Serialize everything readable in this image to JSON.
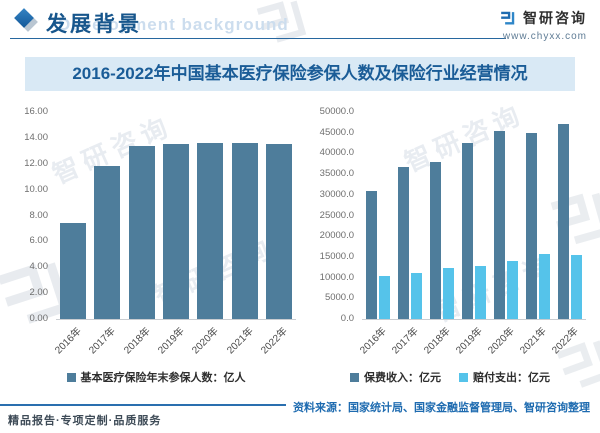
{
  "watermark": {
    "text": "智研咨询"
  },
  "header": {
    "section_title": "发展背景",
    "section_subtitle_en": "Development background",
    "brand_name": "智研咨询",
    "brand_url": "www.chyxx.com"
  },
  "main_title": "2016-2022年中国基本医疗保险参保人数及保险行业经营情况",
  "chart_data": [
    {
      "type": "bar",
      "categories": [
        "2016年",
        "2017年",
        "2018年",
        "2019年",
        "2020年",
        "2021年",
        "2022年"
      ],
      "series": [
        {
          "name": "基本医疗保险年末参保人数：亿人",
          "color": "#4e7d9b",
          "values": [
            7.4,
            11.8,
            13.4,
            13.5,
            13.6,
            13.6,
            13.5
          ]
        }
      ],
      "ylim": [
        0,
        16
      ],
      "yticks": [
        "16.00",
        "14.00",
        "12.00",
        "10.00",
        "8.00",
        "6.00",
        "4.00",
        "2.00",
        "0.00"
      ],
      "grid": false,
      "legend_position": "bottom"
    },
    {
      "type": "bar",
      "categories": [
        "2016年",
        "2017年",
        "2018年",
        "2019年",
        "2020年",
        "2021年",
        "2022年"
      ],
      "series": [
        {
          "name": "保费收入：亿元",
          "color": "#4e7d9b",
          "values": [
            31000,
            36600,
            38000,
            42600,
            45300,
            44900,
            47000
          ]
        },
        {
          "name": "赔付支出：亿元",
          "color": "#55c3ea",
          "values": [
            10500,
            11200,
            12300,
            12900,
            13900,
            15600,
            15500
          ]
        }
      ],
      "ylim": [
        0,
        50000
      ],
      "yticks": [
        "50000.0",
        "45000.0",
        "40000.0",
        "35000.0",
        "30000.0",
        "25000.0",
        "20000.0",
        "15000.0",
        "10000.0",
        "5000.0",
        "0.0"
      ],
      "grid": false,
      "legend_position": "bottom"
    }
  ],
  "footer": {
    "slogan": "精品报告·专项定制·品质服务",
    "source": "资料来源：国家统计局、国家金融监督管理局、智研咨询整理"
  },
  "colors": {
    "accent_blue": "#1e6bb0",
    "header_title": "#17568c",
    "main_title_text": "#1a5c97",
    "main_title_bg": "#d9e9f5",
    "bar_dark": "#4e7d9b",
    "bar_light": "#55c3ea"
  }
}
